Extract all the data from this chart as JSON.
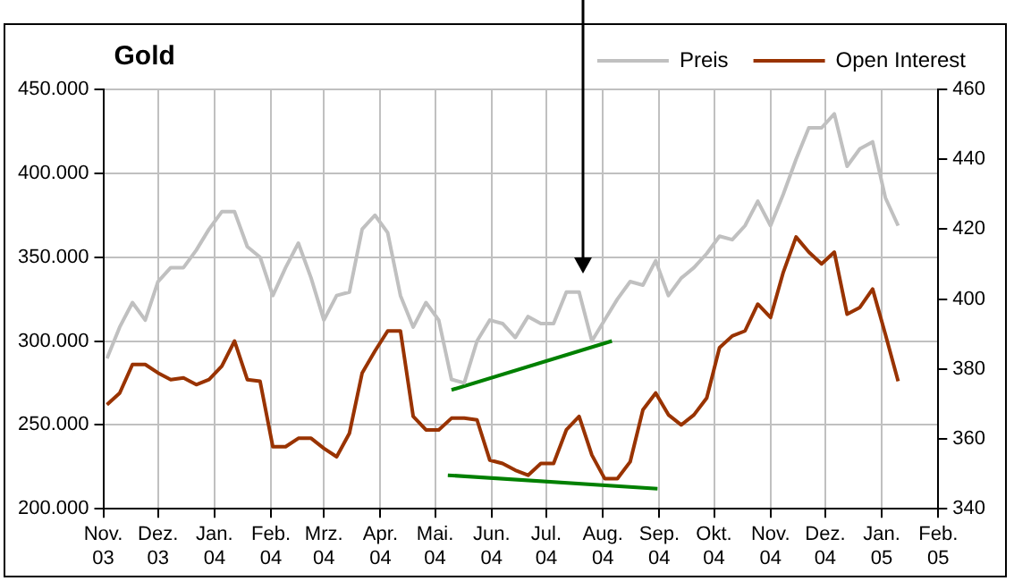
{
  "chart_data": {
    "type": "line",
    "title": "Gold",
    "x": [
      "2003-11-03",
      "2003-11-10",
      "2003-11-17",
      "2003-11-24",
      "2003-12-01",
      "2003-12-08",
      "2003-12-15",
      "2003-12-22",
      "2003-12-29",
      "2004-01-05",
      "2004-01-12",
      "2004-01-19",
      "2004-01-26",
      "2004-02-02",
      "2004-02-09",
      "2004-02-16",
      "2004-02-23",
      "2004-03-01",
      "2004-03-08",
      "2004-03-15",
      "2004-03-22",
      "2004-03-29",
      "2004-04-05",
      "2004-04-12",
      "2004-04-19",
      "2004-04-26",
      "2004-05-03",
      "2004-05-10",
      "2004-05-17",
      "2004-05-24",
      "2004-05-31",
      "2004-06-07",
      "2004-06-14",
      "2004-06-21",
      "2004-06-28",
      "2004-07-05",
      "2004-07-12",
      "2004-07-19",
      "2004-07-26",
      "2004-08-02",
      "2004-08-09",
      "2004-08-16",
      "2004-08-23",
      "2004-08-30",
      "2004-09-06",
      "2004-09-13",
      "2004-09-20",
      "2004-09-27",
      "2004-10-04",
      "2004-10-11",
      "2004-10-18",
      "2004-10-25",
      "2004-11-01",
      "2004-11-08",
      "2004-11-15",
      "2004-11-22",
      "2004-11-29",
      "2004-12-06",
      "2004-12-13",
      "2004-12-20",
      "2004-12-27",
      "2005-01-03",
      "2005-01-10"
    ],
    "series": [
      {
        "name": "Preis",
        "color": "#c0c0c0",
        "axis": "y2",
        "values": [
          383,
          392,
          399,
          394,
          405,
          409,
          409,
          414,
          420,
          425,
          425,
          415,
          412,
          401,
          409,
          416,
          406,
          394,
          401,
          402,
          420,
          424,
          419,
          401,
          392,
          399,
          394,
          377,
          376,
          388,
          394,
          393,
          389,
          395,
          393,
          393,
          402,
          402,
          388,
          394,
          400,
          405,
          404,
          411,
          401,
          406,
          409,
          413,
          418,
          417,
          421,
          428,
          421,
          430,
          440,
          449,
          449,
          453,
          438,
          443,
          445,
          429,
          421
        ]
      },
      {
        "name": "Open Interest",
        "color": "#993300",
        "axis": "y",
        "values": [
          262000,
          269000,
          286000,
          286000,
          281000,
          277000,
          278000,
          274000,
          277000,
          285000,
          300000,
          277000,
          276000,
          237000,
          237000,
          242000,
          242000,
          236000,
          231000,
          245000,
          281000,
          294000,
          306000,
          306000,
          255000,
          247000,
          247000,
          254000,
          254000,
          253000,
          229000,
          227000,
          223000,
          220000,
          227000,
          227000,
          247000,
          255000,
          232000,
          218000,
          218000,
          228000,
          259000,
          269000,
          256000,
          250000,
          256000,
          266000,
          296000,
          303000,
          306000,
          322000,
          314000,
          341000,
          362000,
          353000,
          346000,
          353000,
          316000,
          320000,
          331000,
          304000,
          276000
        ]
      },
      {
        "type": "line",
        "color": "#008000",
        "axis": "y2",
        "x": [
          "2004-05-10",
          "2004-08-06"
        ],
        "values": [
          374,
          388
        ]
      },
      {
        "type": "line",
        "color": "#008000",
        "axis": "y",
        "x": [
          "2004-05-08",
          "2004-08-31"
        ],
        "values": [
          220000,
          212000
        ]
      }
    ],
    "xlim": [
      "2003-11-01",
      "2005-02-01"
    ],
    "xticks": [
      {
        "value": "2003-11-01",
        "label": "Nov. 03"
      },
      {
        "value": "2003-12-01",
        "label": "Dez. 03"
      },
      {
        "value": "2004-01-01",
        "label": "Jan. 04"
      },
      {
        "value": "2004-02-01",
        "label": "Feb. 04"
      },
      {
        "value": "2004-03-01",
        "label": "Mrz. 04"
      },
      {
        "value": "2004-04-01",
        "label": "Apr. 04"
      },
      {
        "value": "2004-05-01",
        "label": "Mai. 04"
      },
      {
        "value": "2004-06-01",
        "label": "Jun. 04"
      },
      {
        "value": "2004-07-01",
        "label": "Jul. 04"
      },
      {
        "value": "2004-08-01",
        "label": "Aug. 04"
      },
      {
        "value": "2004-09-01",
        "label": "Sep. 04"
      },
      {
        "value": "2004-10-01",
        "label": "Okt. 04"
      },
      {
        "value": "2004-11-01",
        "label": "Nov. 04"
      },
      {
        "value": "2004-12-01",
        "label": "Dez. 04"
      },
      {
        "value": "2005-01-01",
        "label": "Jan. 05"
      },
      {
        "value": "2005-02-01",
        "label": "Feb. 05"
      }
    ],
    "ylim": [
      200000,
      450000
    ],
    "yticks": [
      {
        "value": 200000,
        "label": "200.000"
      },
      {
        "value": 250000,
        "label": "250.000"
      },
      {
        "value": 300000,
        "label": "300.000"
      },
      {
        "value": 350000,
        "label": "350.000"
      },
      {
        "value": 400000,
        "label": "400.000"
      },
      {
        "value": 450000,
        "label": "450.000"
      }
    ],
    "y2lim": [
      340,
      460
    ],
    "y2ticks": [
      340,
      360,
      380,
      400,
      420,
      440,
      460
    ],
    "grid": true,
    "legend": "top right",
    "marker": "none",
    "line_style": "solid"
  }
}
